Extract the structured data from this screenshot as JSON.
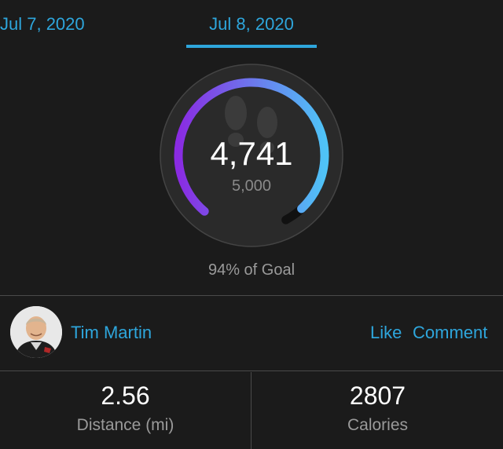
{
  "date_tabs": {
    "previous": "Jul 7, 2020",
    "current": "Jul 8, 2020"
  },
  "steps": {
    "value": "4,741",
    "goal": "5,000",
    "progress_fraction": 0.9482,
    "goal_text": "94% of Goal",
    "icon": "footprints-icon"
  },
  "user": {
    "name": "Tim Martin",
    "like_label": "Like",
    "comment_label": "Comment"
  },
  "stats": {
    "distance": {
      "value": "2.56",
      "label": "Distance (mi)"
    },
    "calories": {
      "value": "2807",
      "label": "Calories"
    }
  },
  "colors": {
    "background": "#1b1b1b",
    "accent": "#2ea6dc",
    "gauge_start": "#8a2be2",
    "gauge_end": "#4fc3f7"
  }
}
